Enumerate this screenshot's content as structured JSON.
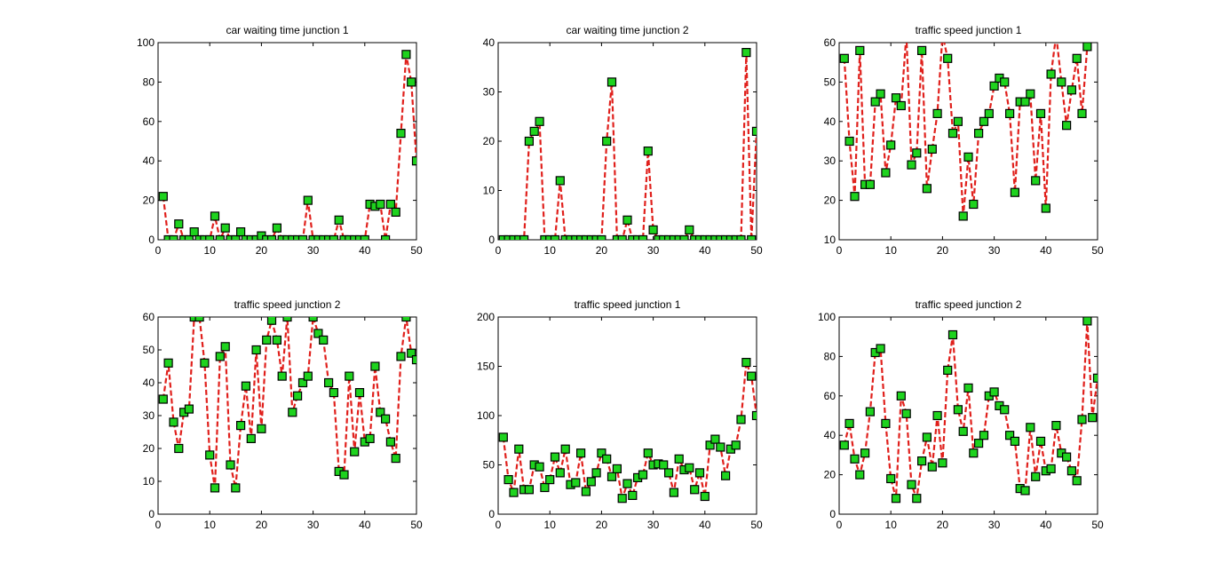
{
  "colors": {
    "line": "#e0201c",
    "marker_fill": "#1ed31e",
    "marker_edge": "#000000",
    "background": "#ffffff"
  },
  "chart_data": [
    {
      "type": "line",
      "title": "car waiting time junction 1",
      "xlim": [
        0,
        50
      ],
      "ylim": [
        0,
        100
      ],
      "xticks": [
        0,
        10,
        20,
        30,
        40,
        50
      ],
      "yticks": [
        0,
        20,
        40,
        60,
        80,
        100
      ],
      "x": [
        1,
        2,
        3,
        4,
        5,
        6,
        7,
        8,
        9,
        10,
        11,
        12,
        13,
        14,
        15,
        16,
        17,
        18,
        19,
        20,
        21,
        22,
        23,
        24,
        25,
        26,
        27,
        28,
        29,
        30,
        31,
        32,
        33,
        34,
        35,
        36,
        37,
        38,
        39,
        40,
        41,
        42,
        43,
        44,
        45,
        46,
        47,
        48,
        49,
        50
      ],
      "values": [
        22,
        0,
        0,
        8,
        0,
        0,
        4,
        0,
        0,
        0,
        12,
        0,
        6,
        0,
        0,
        4,
        0,
        0,
        0,
        2,
        0,
        0,
        6,
        0,
        0,
        0,
        0,
        0,
        20,
        0,
        0,
        0,
        0,
        0,
        10,
        0,
        0,
        0,
        0,
        0,
        18,
        17,
        18,
        0,
        18,
        14,
        54,
        94,
        80,
        40
      ]
    },
    {
      "type": "line",
      "title": "car waiting time junction 2",
      "xlim": [
        0,
        50
      ],
      "ylim": [
        0,
        40
      ],
      "xticks": [
        0,
        10,
        20,
        30,
        40,
        50
      ],
      "yticks": [
        0,
        10,
        20,
        30,
        40
      ],
      "x": [
        1,
        2,
        3,
        4,
        5,
        6,
        7,
        8,
        9,
        10,
        11,
        12,
        13,
        14,
        15,
        16,
        17,
        18,
        19,
        20,
        21,
        22,
        23,
        24,
        25,
        26,
        27,
        28,
        29,
        30,
        31,
        32,
        33,
        34,
        35,
        36,
        37,
        38,
        39,
        40,
        41,
        42,
        43,
        44,
        45,
        46,
        47,
        48,
        49,
        50
      ],
      "values": [
        0,
        0,
        0,
        0,
        0,
        20,
        22,
        24,
        0,
        0,
        0,
        12,
        0,
        0,
        0,
        0,
        0,
        0,
        0,
        0,
        20,
        32,
        0,
        0,
        4,
        0,
        0,
        0,
        18,
        2,
        0,
        0,
        0,
        0,
        0,
        0,
        2,
        0,
        0,
        0,
        0,
        0,
        0,
        0,
        0,
        0,
        0,
        38,
        0,
        22
      ]
    },
    {
      "type": "line",
      "title": "traffic speed junction 1",
      "xlim": [
        0,
        50
      ],
      "ylim": [
        10,
        60
      ],
      "xticks": [
        0,
        10,
        20,
        30,
        40,
        50
      ],
      "yticks": [
        10,
        20,
        30,
        40,
        50,
        60
      ],
      "x": [
        1,
        2,
        3,
        4,
        5,
        6,
        7,
        8,
        9,
        10,
        11,
        12,
        13,
        14,
        15,
        16,
        17,
        18,
        19,
        20,
        21,
        22,
        23,
        24,
        25,
        26,
        27,
        28,
        29,
        30,
        31,
        32,
        33,
        34,
        35,
        36,
        37,
        38,
        39,
        40,
        41,
        42,
        43,
        44,
        45,
        46,
        47,
        48
      ],
      "values": [
        56,
        35,
        21,
        58,
        24,
        24,
        45,
        47,
        27,
        34,
        46,
        44,
        62,
        29,
        32,
        58,
        23,
        33,
        42,
        62,
        56,
        37,
        40,
        16,
        31,
        19,
        37,
        40,
        42,
        49,
        51,
        50,
        42,
        22,
        45,
        45,
        47,
        25,
        42,
        18,
        52,
        62,
        50,
        39,
        48,
        56,
        42,
        59
      ]
    },
    {
      "type": "line",
      "title": "traffic speed junction 2",
      "xlim": [
        0,
        50
      ],
      "ylim": [
        0,
        60
      ],
      "xticks": [
        0,
        10,
        20,
        30,
        40,
        50
      ],
      "yticks": [
        0,
        10,
        20,
        30,
        40,
        50,
        60
      ],
      "x": [
        1,
        2,
        3,
        4,
        5,
        6,
        7,
        8,
        9,
        10,
        11,
        12,
        13,
        14,
        15,
        16,
        17,
        18,
        19,
        20,
        21,
        22,
        23,
        24,
        25,
        26,
        27,
        28,
        29,
        30,
        31,
        32,
        33,
        34,
        35,
        36,
        37,
        38,
        39,
        40,
        41,
        42,
        43,
        44,
        45,
        46,
        47,
        48,
        49,
        50
      ],
      "values": [
        35,
        46,
        28,
        20,
        31,
        32,
        60,
        60,
        46,
        18,
        8,
        48,
        51,
        15,
        8,
        27,
        39,
        23,
        50,
        26,
        53,
        59,
        53,
        42,
        60,
        31,
        36,
        40,
        42,
        60,
        55,
        53,
        40,
        37,
        13,
        12,
        42,
        19,
        37,
        22,
        23,
        45,
        31,
        29,
        22,
        17,
        48,
        60,
        49,
        47
      ]
    },
    {
      "type": "line",
      "title": "traffic speed junction 1",
      "xlim": [
        0,
        50
      ],
      "ylim": [
        0,
        200
      ],
      "xticks": [
        0,
        10,
        20,
        30,
        40,
        50
      ],
      "yticks": [
        0,
        50,
        100,
        150,
        200
      ],
      "x": [
        1,
        2,
        3,
        4,
        5,
        6,
        7,
        8,
        9,
        10,
        11,
        12,
        13,
        14,
        15,
        16,
        17,
        18,
        19,
        20,
        21,
        22,
        23,
        24,
        25,
        26,
        27,
        28,
        29,
        30,
        31,
        32,
        33,
        34,
        35,
        36,
        37,
        38,
        39,
        40,
        41,
        42,
        43,
        44,
        45,
        46,
        47,
        48,
        49,
        50
      ],
      "values": [
        78,
        35,
        22,
        66,
        25,
        25,
        50,
        48,
        27,
        35,
        58,
        42,
        66,
        30,
        32,
        62,
        23,
        33,
        42,
        62,
        56,
        38,
        46,
        16,
        31,
        19,
        37,
        40,
        62,
        50,
        51,
        50,
        42,
        22,
        56,
        45,
        47,
        25,
        42,
        18,
        70,
        76,
        68,
        39,
        66,
        70,
        96,
        154,
        140,
        100
      ]
    },
    {
      "type": "line",
      "title": "traffic speed junction 2",
      "xlim": [
        0,
        50
      ],
      "ylim": [
        0,
        100
      ],
      "xticks": [
        0,
        10,
        20,
        30,
        40,
        50
      ],
      "yticks": [
        0,
        20,
        40,
        60,
        80,
        100
      ],
      "x": [
        1,
        2,
        3,
        4,
        5,
        6,
        7,
        8,
        9,
        10,
        11,
        12,
        13,
        14,
        15,
        16,
        17,
        18,
        19,
        20,
        21,
        22,
        23,
        24,
        25,
        26,
        27,
        28,
        29,
        30,
        31,
        32,
        33,
        34,
        35,
        36,
        37,
        38,
        39,
        40,
        41,
        42,
        43,
        44,
        45,
        46,
        47,
        48,
        49,
        50
      ],
      "values": [
        35,
        46,
        28,
        20,
        31,
        52,
        82,
        84,
        46,
        18,
        8,
        60,
        51,
        15,
        8,
        27,
        39,
        24,
        50,
        26,
        73,
        91,
        53,
        42,
        64,
        31,
        36,
        40,
        60,
        62,
        55,
        53,
        40,
        37,
        13,
        12,
        44,
        19,
        37,
        22,
        23,
        45,
        31,
        29,
        22,
        17,
        48,
        98,
        49,
        69
      ]
    }
  ]
}
